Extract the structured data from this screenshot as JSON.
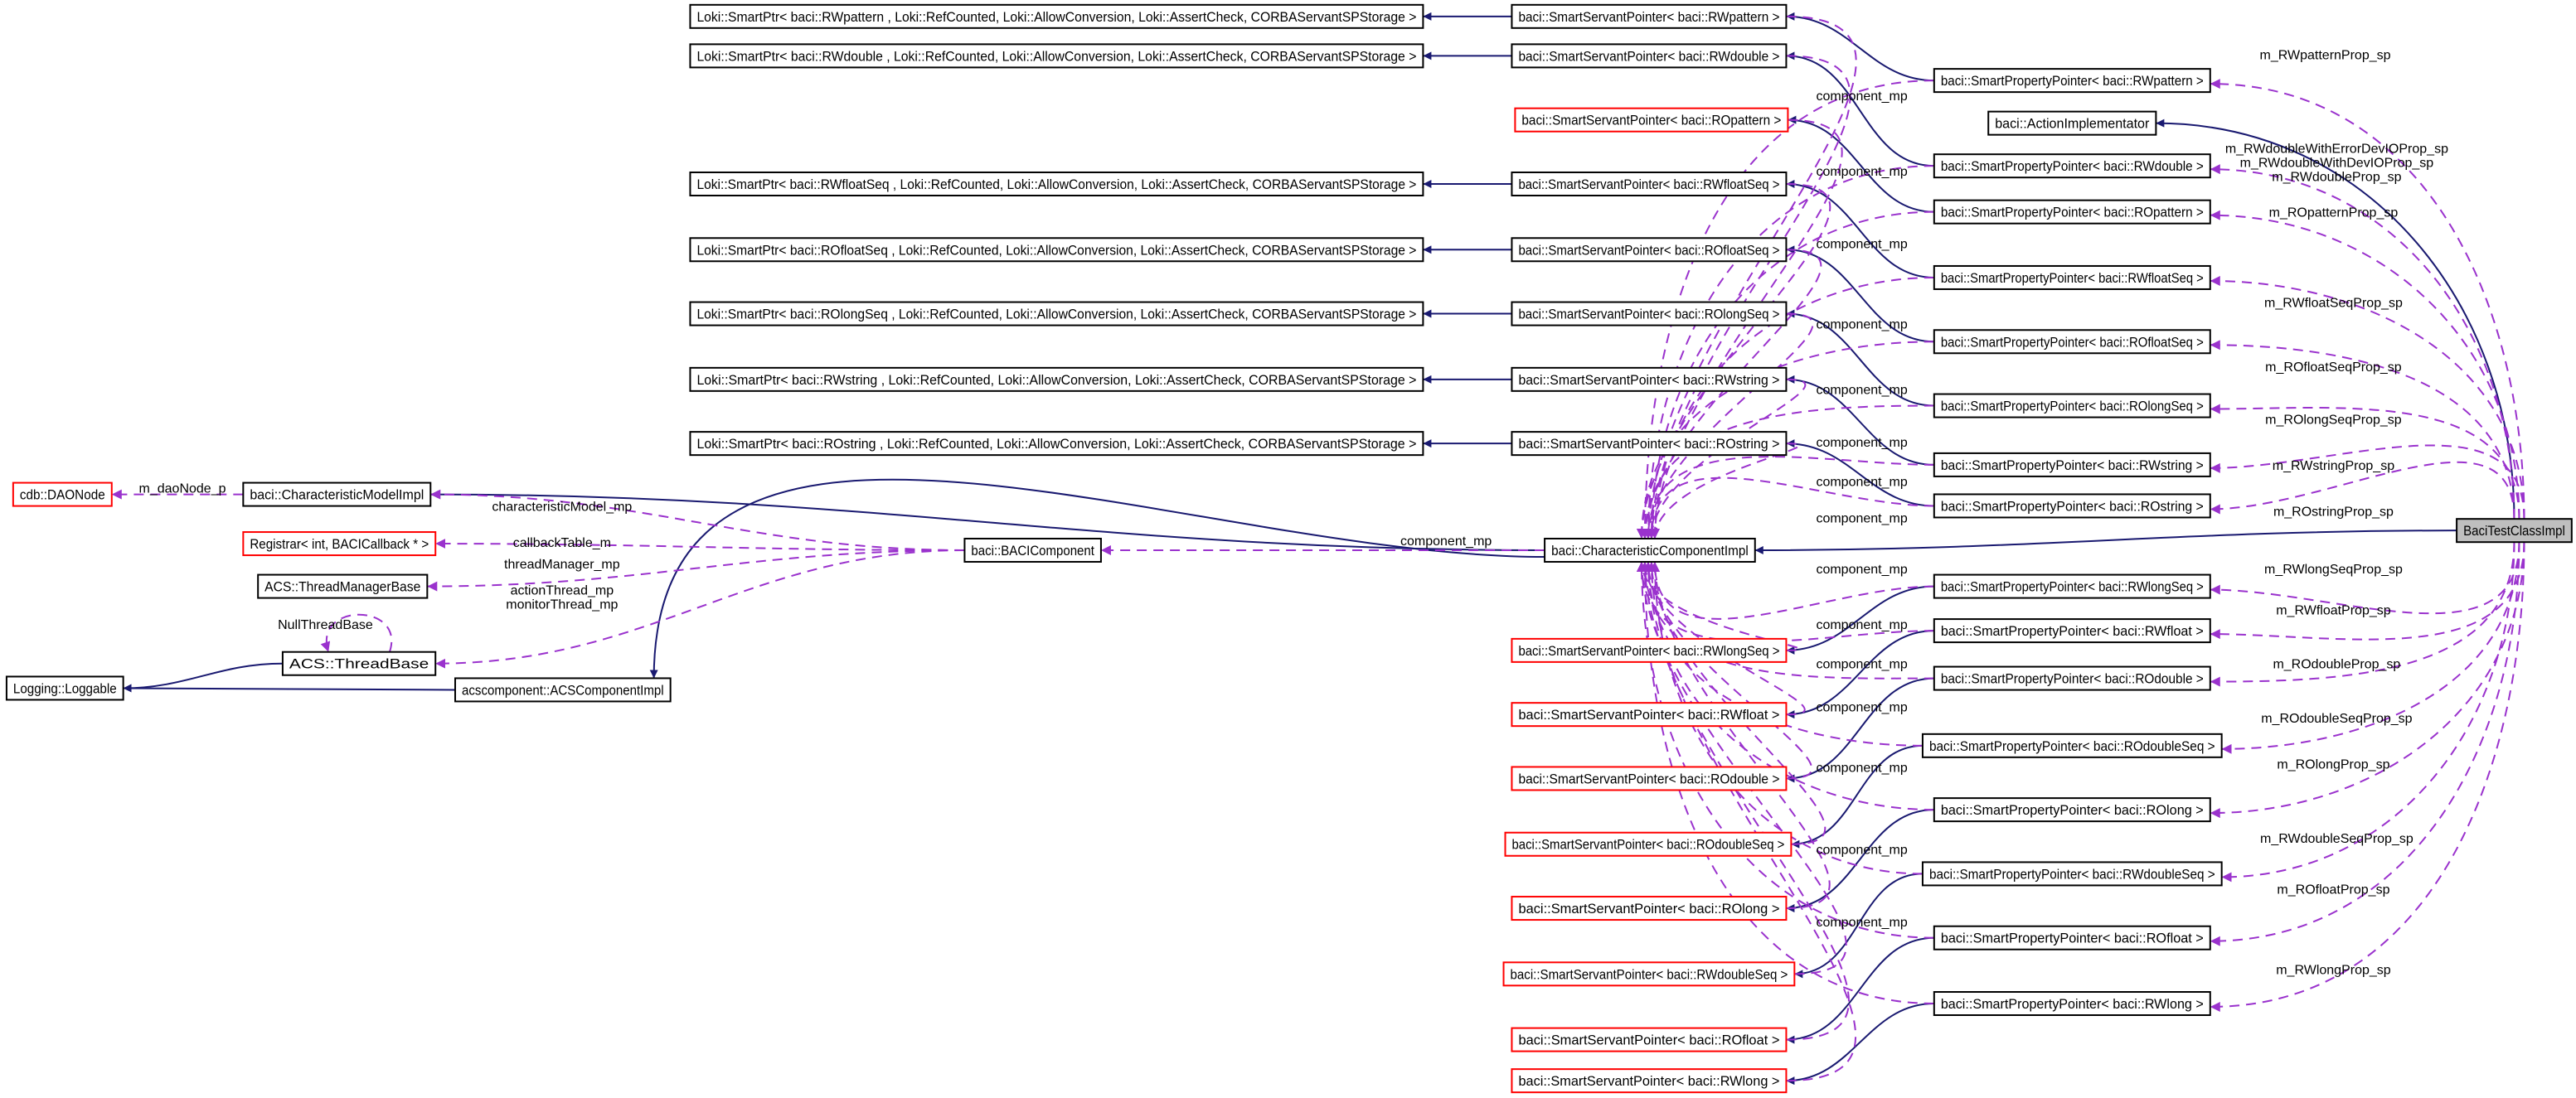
{
  "diagram": {
    "colors": {
      "inheritance": "#191970",
      "usage": "#9a32cd",
      "undocumented_border": "#ff0000",
      "root_fill": "#bfbfbf"
    },
    "nodes": [
      {
        "label": "BaciTestClassImpl",
        "style": "root"
      },
      {
        "label": "baci::ActionImplementator",
        "style": "normal"
      },
      {
        "label": "baci::CharacteristicComponentImpl",
        "style": "normal"
      },
      {
        "label": "baci::BACIComponent",
        "style": "normal"
      },
      {
        "label": "baci::CharacteristicModelImpl",
        "style": "normal"
      },
      {
        "label": "cdb::DAONode",
        "style": "red"
      },
      {
        "label": "Registrar< int, BACICallback * >",
        "style": "red"
      },
      {
        "label": "ACS::ThreadManagerBase",
        "style": "normal"
      },
      {
        "label": "ACS::ThreadBase",
        "style": "normal"
      },
      {
        "label": "Logging::Loggable",
        "style": "normal"
      },
      {
        "label": "acscomponent::ACSComponentImpl",
        "style": "normal"
      },
      {
        "label": "baci::SmartPropertyPointer< baci::RWpattern >",
        "style": "normal"
      },
      {
        "label": "baci::SmartPropertyPointer< baci::RWdouble >",
        "style": "normal"
      },
      {
        "label": "baci::SmartPropertyPointer< baci::ROpattern >",
        "style": "normal"
      },
      {
        "label": "baci::SmartPropertyPointer< baci::RWfloatSeq >",
        "style": "normal"
      },
      {
        "label": "baci::SmartPropertyPointer< baci::ROfloatSeq >",
        "style": "normal"
      },
      {
        "label": "baci::SmartPropertyPointer< baci::ROlongSeq >",
        "style": "normal"
      },
      {
        "label": "baci::SmartPropertyPointer< baci::RWstring >",
        "style": "normal"
      },
      {
        "label": "baci::SmartPropertyPointer< baci::ROstring >",
        "style": "normal"
      },
      {
        "label": "baci::SmartPropertyPointer< baci::RWlongSeq >",
        "style": "normal"
      },
      {
        "label": "baci::SmartPropertyPointer< baci::RWfloat >",
        "style": "normal"
      },
      {
        "label": "baci::SmartPropertyPointer< baci::ROdouble >",
        "style": "normal"
      },
      {
        "label": "baci::SmartPropertyPointer< baci::ROdoubleSeq >",
        "style": "normal"
      },
      {
        "label": "baci::SmartPropertyPointer< baci::ROlong >",
        "style": "normal"
      },
      {
        "label": "baci::SmartPropertyPointer< baci::RWdoubleSeq >",
        "style": "normal"
      },
      {
        "label": "baci::SmartPropertyPointer< baci::ROfloat >",
        "style": "normal"
      },
      {
        "label": "baci::SmartPropertyPointer< baci::RWlong >",
        "style": "normal"
      },
      {
        "label": "baci::SmartServantPointer< baci::RWpattern >",
        "style": "normal"
      },
      {
        "label": "baci::SmartServantPointer< baci::RWdouble >",
        "style": "normal"
      },
      {
        "label": "baci::SmartServantPointer< baci::ROpattern >",
        "style": "red"
      },
      {
        "label": "baci::SmartServantPointer< baci::RWfloatSeq >",
        "style": "normal"
      },
      {
        "label": "baci::SmartServantPointer< baci::ROfloatSeq >",
        "style": "normal"
      },
      {
        "label": "baci::SmartServantPointer< baci::ROlongSeq >",
        "style": "normal"
      },
      {
        "label": "baci::SmartServantPointer< baci::RWstring >",
        "style": "normal"
      },
      {
        "label": "baci::SmartServantPointer< baci::ROstring >",
        "style": "normal"
      },
      {
        "label": "baci::SmartServantPointer< baci::RWlongSeq >",
        "style": "red"
      },
      {
        "label": "baci::SmartServantPointer< baci::RWfloat >",
        "style": "red"
      },
      {
        "label": "baci::SmartServantPointer< baci::ROdouble >",
        "style": "red"
      },
      {
        "label": "baci::SmartServantPointer< baci::ROdoubleSeq >",
        "style": "red"
      },
      {
        "label": "baci::SmartServantPointer< baci::ROlong >",
        "style": "red"
      },
      {
        "label": "baci::SmartServantPointer< baci::RWdoubleSeq >",
        "style": "red"
      },
      {
        "label": "baci::SmartServantPointer< baci::ROfloat >",
        "style": "red"
      },
      {
        "label": "baci::SmartServantPointer< baci::RWlong >",
        "style": "red"
      },
      {
        "label": "Loki::SmartPtr< baci::RWpattern , Loki::RefCounted, Loki::AllowConversion, Loki::AssertCheck, CORBAServantSPStorage >",
        "style": "normal"
      },
      {
        "label": "Loki::SmartPtr< baci::RWdouble , Loki::RefCounted, Loki::AllowConversion, Loki::AssertCheck, CORBAServantSPStorage >",
        "style": "normal"
      },
      {
        "label": "Loki::SmartPtr< baci::RWfloatSeq , Loki::RefCounted, Loki::AllowConversion, Loki::AssertCheck, CORBAServantSPStorage >",
        "style": "normal"
      },
      {
        "label": "Loki::SmartPtr< baci::ROfloatSeq , Loki::RefCounted, Loki::AllowConversion, Loki::AssertCheck, CORBAServantSPStorage >",
        "style": "normal"
      },
      {
        "label": "Loki::SmartPtr< baci::ROlongSeq , Loki::RefCounted, Loki::AllowConversion, Loki::AssertCheck, CORBAServantSPStorage >",
        "style": "normal"
      },
      {
        "label": "Loki::SmartPtr< baci::RWstring , Loki::RefCounted, Loki::AllowConversion, Loki::AssertCheck, CORBAServantSPStorage >",
        "style": "normal"
      },
      {
        "label": "Loki::SmartPtr< baci::ROstring , Loki::RefCounted, Loki::AllowConversion, Loki::AssertCheck, CORBAServantSPStorage >",
        "style": "normal"
      }
    ],
    "edges": [
      {
        "source": 0,
        "target": 1,
        "type": "inheritance",
        "labels": []
      },
      {
        "source": 0,
        "target": 2,
        "type": "inheritance",
        "labels": []
      },
      {
        "source": 2,
        "target": 4,
        "type": "inheritance",
        "labels": []
      },
      {
        "source": 2,
        "target": 10,
        "type": "inheritance",
        "labels": []
      },
      {
        "source": 10,
        "target": 9,
        "type": "inheritance",
        "labels": []
      },
      {
        "source": 8,
        "target": 9,
        "type": "inheritance",
        "labels": []
      },
      {
        "source": 11,
        "target": 27,
        "type": "inheritance",
        "labels": []
      },
      {
        "source": 12,
        "target": 28,
        "type": "inheritance",
        "labels": []
      },
      {
        "source": 13,
        "target": 29,
        "type": "inheritance",
        "labels": []
      },
      {
        "source": 14,
        "target": 30,
        "type": "inheritance",
        "labels": []
      },
      {
        "source": 15,
        "target": 31,
        "type": "inheritance",
        "labels": []
      },
      {
        "source": 16,
        "target": 32,
        "type": "inheritance",
        "labels": []
      },
      {
        "source": 17,
        "target": 33,
        "type": "inheritance",
        "labels": []
      },
      {
        "source": 18,
        "target": 34,
        "type": "inheritance",
        "labels": []
      },
      {
        "source": 19,
        "target": 35,
        "type": "inheritance",
        "labels": []
      },
      {
        "source": 20,
        "target": 36,
        "type": "inheritance",
        "labels": []
      },
      {
        "source": 21,
        "target": 37,
        "type": "inheritance",
        "labels": []
      },
      {
        "source": 22,
        "target": 38,
        "type": "inheritance",
        "labels": []
      },
      {
        "source": 23,
        "target": 39,
        "type": "inheritance",
        "labels": []
      },
      {
        "source": 24,
        "target": 40,
        "type": "inheritance",
        "labels": []
      },
      {
        "source": 25,
        "target": 41,
        "type": "inheritance",
        "labels": []
      },
      {
        "source": 26,
        "target": 42,
        "type": "inheritance",
        "labels": []
      },
      {
        "source": 27,
        "target": 43,
        "type": "inheritance",
        "labels": []
      },
      {
        "source": 28,
        "target": 44,
        "type": "inheritance",
        "labels": []
      },
      {
        "source": 30,
        "target": 45,
        "type": "inheritance",
        "labels": []
      },
      {
        "source": 31,
        "target": 46,
        "type": "inheritance",
        "labels": []
      },
      {
        "source": 32,
        "target": 47,
        "type": "inheritance",
        "labels": []
      },
      {
        "source": 33,
        "target": 48,
        "type": "inheritance",
        "labels": []
      },
      {
        "source": 34,
        "target": 49,
        "type": "inheritance",
        "labels": []
      },
      {
        "source": 0,
        "target": 11,
        "type": "usage",
        "labels": [
          "m_RWpatternProp_sp"
        ]
      },
      {
        "source": 0,
        "target": 12,
        "type": "usage",
        "labels": [
          "m_RWdoubleWithErrorDevIOProp_sp",
          "m_RWdoubleWithDevIOProp_sp",
          "m_RWdoubleProp_sp"
        ]
      },
      {
        "source": 0,
        "target": 13,
        "type": "usage",
        "labels": [
          "m_ROpatternProp_sp"
        ]
      },
      {
        "source": 0,
        "target": 14,
        "type": "usage",
        "labels": [
          "m_RWfloatSeqProp_sp"
        ]
      },
      {
        "source": 0,
        "target": 15,
        "type": "usage",
        "labels": [
          "m_ROfloatSeqProp_sp"
        ]
      },
      {
        "source": 0,
        "target": 16,
        "type": "usage",
        "labels": [
          "m_ROlongSeqProp_sp"
        ]
      },
      {
        "source": 0,
        "target": 17,
        "type": "usage",
        "labels": [
          "m_RWstringProp_sp"
        ]
      },
      {
        "source": 0,
        "target": 18,
        "type": "usage",
        "labels": [
          "m_ROstringProp_sp"
        ]
      },
      {
        "source": 0,
        "target": 19,
        "type": "usage",
        "labels": [
          "m_RWlongSeqProp_sp"
        ]
      },
      {
        "source": 0,
        "target": 20,
        "type": "usage",
        "labels": [
          "m_RWfloatProp_sp"
        ]
      },
      {
        "source": 0,
        "target": 21,
        "type": "usage",
        "labels": [
          "m_ROdoubleProp_sp"
        ]
      },
      {
        "source": 0,
        "target": 22,
        "type": "usage",
        "labels": [
          "m_ROdoubleSeqProp_sp"
        ]
      },
      {
        "source": 0,
        "target": 23,
        "type": "usage",
        "labels": [
          "m_ROlongProp_sp"
        ]
      },
      {
        "source": 0,
        "target": 24,
        "type": "usage",
        "labels": [
          "m_RWdoubleSeqProp_sp"
        ]
      },
      {
        "source": 0,
        "target": 25,
        "type": "usage",
        "labels": [
          "m_ROfloatProp_sp"
        ]
      },
      {
        "source": 0,
        "target": 26,
        "type": "usage",
        "labels": [
          "m_RWlongProp_sp"
        ]
      },
      {
        "source": 27,
        "target": 2,
        "type": "usage",
        "labels": [
          "component_mp"
        ]
      },
      {
        "source": 28,
        "target": 2,
        "type": "usage",
        "labels": [
          "component_mp"
        ]
      },
      {
        "source": 29,
        "target": 2,
        "type": "usage",
        "labels": [
          "component_mp"
        ]
      },
      {
        "source": 30,
        "target": 2,
        "type": "usage",
        "labels": [
          "component_mp"
        ]
      },
      {
        "source": 31,
        "target": 2,
        "type": "usage",
        "labels": [
          "component_mp"
        ]
      },
      {
        "source": 32,
        "target": 2,
        "type": "usage",
        "labels": [
          "component_mp"
        ]
      },
      {
        "source": 33,
        "target": 2,
        "type": "usage",
        "labels": [
          "component_mp"
        ]
      },
      {
        "source": 34,
        "target": 2,
        "type": "usage",
        "labels": [
          "component_mp"
        ]
      },
      {
        "source": 35,
        "target": 2,
        "type": "usage",
        "labels": [
          "component_mp"
        ]
      },
      {
        "source": 36,
        "target": 2,
        "type": "usage",
        "labels": [
          "component_mp"
        ]
      },
      {
        "source": 37,
        "target": 2,
        "type": "usage",
        "labels": [
          "component_mp"
        ]
      },
      {
        "source": 38,
        "target": 2,
        "type": "usage",
        "labels": [
          "component_mp"
        ]
      },
      {
        "source": 39,
        "target": 2,
        "type": "usage",
        "labels": [
          "component_mp"
        ]
      },
      {
        "source": 40,
        "target": 2,
        "type": "usage",
        "labels": [
          "component_mp"
        ]
      },
      {
        "source": 41,
        "target": 2,
        "type": "usage",
        "labels": [
          "component_mp"
        ]
      },
      {
        "source": 42,
        "target": 2,
        "type": "usage",
        "labels": []
      },
      {
        "source": 19,
        "target": 2,
        "type": "usage",
        "labels": []
      },
      {
        "source": 20,
        "target": 2,
        "type": "usage",
        "labels": []
      },
      {
        "source": 21,
        "target": 2,
        "type": "usage",
        "labels": []
      },
      {
        "source": 22,
        "target": 2,
        "type": "usage",
        "labels": []
      },
      {
        "source": 23,
        "target": 2,
        "type": "usage",
        "labels": []
      },
      {
        "source": 24,
        "target": 2,
        "type": "usage",
        "labels": []
      },
      {
        "source": 25,
        "target": 2,
        "type": "usage",
        "labels": []
      },
      {
        "source": 26,
        "target": 2,
        "type": "usage",
        "labels": []
      },
      {
        "source": 11,
        "target": 2,
        "type": "usage",
        "labels": []
      },
      {
        "source": 12,
        "target": 2,
        "type": "usage",
        "labels": []
      },
      {
        "source": 13,
        "target": 2,
        "type": "usage",
        "labels": []
      },
      {
        "source": 14,
        "target": 2,
        "type": "usage",
        "labels": []
      },
      {
        "source": 15,
        "target": 2,
        "type": "usage",
        "labels": []
      },
      {
        "source": 16,
        "target": 2,
        "type": "usage",
        "labels": []
      },
      {
        "source": 17,
        "target": 2,
        "type": "usage",
        "labels": []
      },
      {
        "source": 18,
        "target": 2,
        "type": "usage",
        "labels": []
      },
      {
        "source": 2,
        "target": 3,
        "type": "usage",
        "labels": [
          "component_mp"
        ]
      },
      {
        "source": 3,
        "target": 4,
        "type": "usage",
        "labels": [
          "characteristicModel_mp"
        ]
      },
      {
        "source": 3,
        "target": 6,
        "type": "usage",
        "labels": [
          "callbackTable_m"
        ]
      },
      {
        "source": 3,
        "target": 7,
        "type": "usage",
        "labels": [
          "threadManager_mp"
        ]
      },
      {
        "source": 3,
        "target": 8,
        "type": "usage",
        "labels": [
          "actionThread_mp",
          "monitorThread_mp"
        ]
      },
      {
        "source": 4,
        "target": 5,
        "type": "usage",
        "labels": [
          "m_daoNode_p"
        ]
      },
      {
        "source": 8,
        "target": 8,
        "type": "usage",
        "labels": [
          "NullThreadBase"
        ]
      }
    ]
  }
}
